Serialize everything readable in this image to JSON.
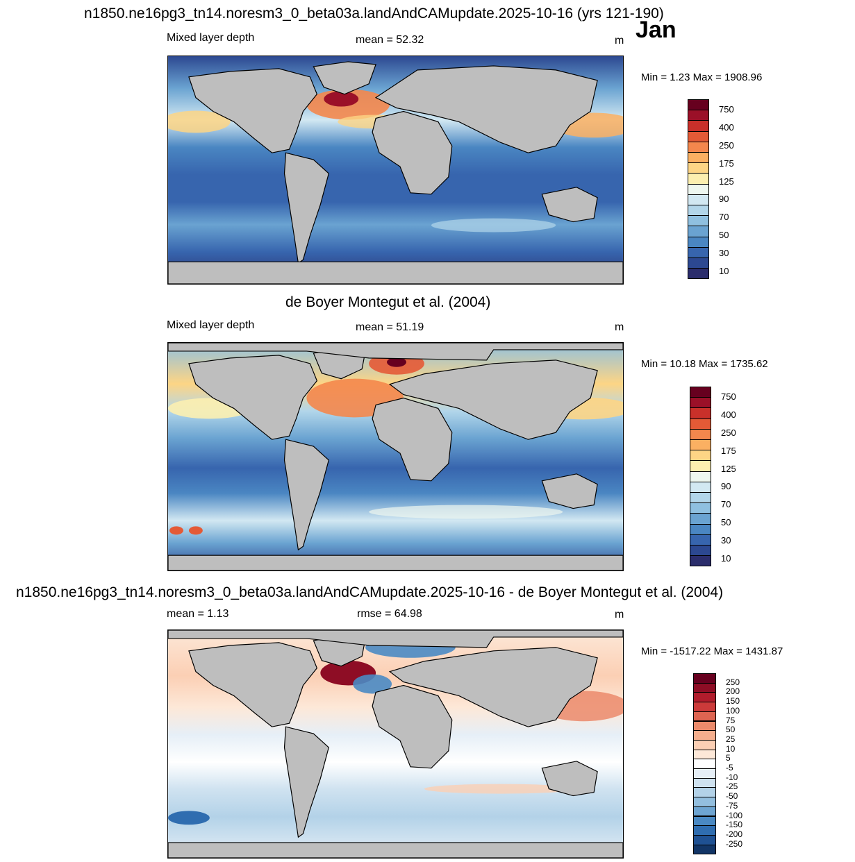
{
  "header": {
    "title": "n1850.ne16pg3_tn14.noresm3_0_beta03a.landAndCAMupdate.2025-10-16 (yrs 121-190)",
    "month": "Jan"
  },
  "panels": [
    {
      "title": "",
      "left_label": "Mixed layer depth",
      "center_label": "mean =  52.32",
      "units": "m",
      "minmax": "Min =   1.23 Max = 1908.96"
    },
    {
      "title": "de Boyer Montegut et al. (2004)",
      "left_label": "Mixed layer depth",
      "center_label": "mean =  51.19",
      "units": "m",
      "minmax": "Min =  10.18 Max = 1735.62"
    },
    {
      "title": "n1850.ne16pg3_tn14.noresm3_0_beta03a.landAndCAMupdate.2025-10-16 - de Boyer Montegut et al. (2004)",
      "left_label": "mean =   1.13",
      "center_label": "rmse =  64.98",
      "units": "m",
      "minmax": "Min = -1517.22 Max = 1431.87"
    }
  ],
  "colorbars": {
    "mld": {
      "labels": [
        "750",
        "400",
        "250",
        "175",
        "125",
        "90",
        "70",
        "50",
        "30",
        "10"
      ],
      "colors": [
        "#67001f",
        "#9b1028",
        "#c9302a",
        "#e45a36",
        "#f4874d",
        "#fbb062",
        "#fdd585",
        "#fcefb0",
        "#eef7f0",
        "#d2e8f2",
        "#b2d6ea",
        "#8fc0e0",
        "#6aa3d1",
        "#4a86c2",
        "#3765ae",
        "#2c4891",
        "#2b2d6c"
      ]
    },
    "diff": {
      "labels": [
        "250",
        "200",
        "150",
        "100",
        "75",
        "50",
        "25",
        "10",
        "5",
        "-5",
        "-10",
        "-25",
        "-50",
        "-75",
        "-100",
        "-150",
        "-200",
        "-250"
      ],
      "colors": [
        "#67001f",
        "#8e0d25",
        "#b11c2c",
        "#cc3a3a",
        "#de6451",
        "#eb8a6b",
        "#f5ae8d",
        "#fbcfb4",
        "#fde8d8",
        "#ffffff",
        "#e6eff7",
        "#cfe2f0",
        "#b3d2e8",
        "#93bfdf",
        "#6ea5d2",
        "#4a89c3",
        "#2f6db0",
        "#1f5193",
        "#123566"
      ]
    }
  }
}
